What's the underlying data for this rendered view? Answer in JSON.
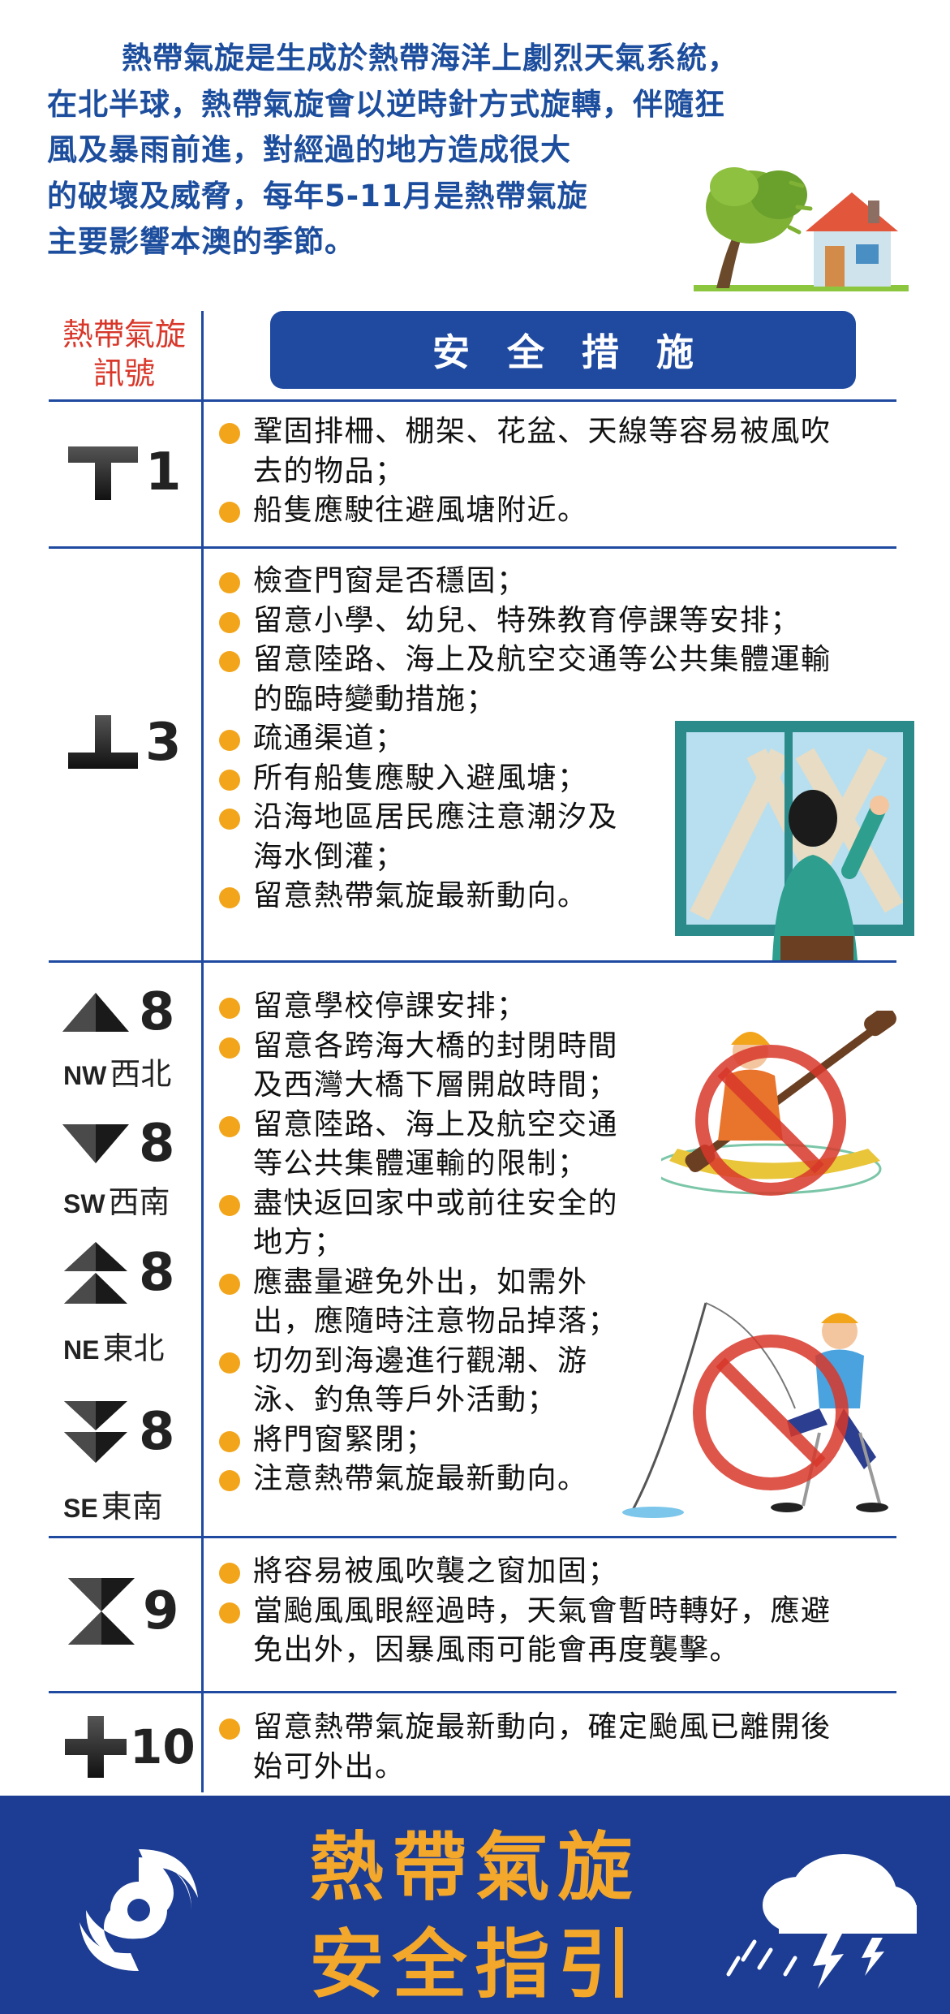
{
  "intro": {
    "lines": [
      "熱帶氣旋是生成於熱帶海洋上劇烈天氣系統，",
      "在北半球，熱帶氣旋會以逆時針方式旋轉，伴隨狂",
      "風及暴雨前進，對經過的地方造成很大",
      "的破壞及威脅，每年5-11月是熱帶氣旋",
      "主要影響本澳的季節。"
    ]
  },
  "header": {
    "signal_label_1": "熱帶氣旋",
    "signal_label_2": "訊號",
    "measures_label": "安全措施"
  },
  "signals": {
    "s1": {
      "number": "1"
    },
    "s3": {
      "number": "3"
    },
    "s8": {
      "number": "8",
      "nw": {
        "code": "NW",
        "label": "西北"
      },
      "sw": {
        "code": "SW",
        "label": "西南"
      },
      "ne": {
        "code": "NE",
        "label": "東北"
      },
      "se": {
        "code": "SE",
        "label": "東南"
      }
    },
    "s9": {
      "number": "9"
    },
    "s10": {
      "number": "10"
    }
  },
  "measures": {
    "s1": [
      "鞏固排柵、棚架、花盆、天線等容易被風吹",
      "去的物品；",
      "船隻應駛往避風塘附近。"
    ],
    "s3": [
      "檢查門窗是否穩固；",
      "留意小學、幼兒、特殊教育停課等安排；",
      "留意陸路、海上及航空交通等公共集體運輸",
      "的臨時變動措施；",
      "疏通渠道；",
      "所有船隻應駛入避風塘；",
      "沿海地區居民應注意潮汐及",
      "海水倒灌；",
      "留意熱帶氣旋最新動向。"
    ],
    "s8": [
      "留意學校停課安排；",
      "留意各跨海大橋的封閉時間",
      "及西灣大橋下層開啟時間；",
      "留意陸路、海上及航空交通",
      "等公共集體運輸的限制；",
      "盡快返回家中或前往安全的",
      "地方；",
      "應盡量避免外出，如需外",
      "出，應隨時注意物品掉落；",
      "切勿到海邊進行觀潮、游",
      "泳、釣魚等戶外活動；",
      "將門窗緊閉；",
      "注意熱帶氣旋最新動向。"
    ],
    "s9": [
      "將容易被風吹襲之窗加固；",
      "當颱風風眼經過時，天氣會暫時轉好，應避",
      "免出外，因暴風雨可能會再度襲擊。"
    ],
    "s10": [
      "留意熱帶氣旋最新動向，確定颱風已離開後",
      "始可外出。"
    ]
  },
  "footer": {
    "title_line_1": "熱帶氣旋",
    "title_line_2": "安全指引"
  },
  "colors": {
    "primary_blue": "#1f4aa0",
    "accent_orange": "#f3a72b",
    "bullet_orange": "#f2a51a",
    "header_red": "#d8372a"
  },
  "icons": [
    "house-in-wind-illustration",
    "taped-window-illustration",
    "no-kayaking-illustration",
    "no-fishing-illustration",
    "typhoon-icon",
    "storm-cloud-icon"
  ]
}
